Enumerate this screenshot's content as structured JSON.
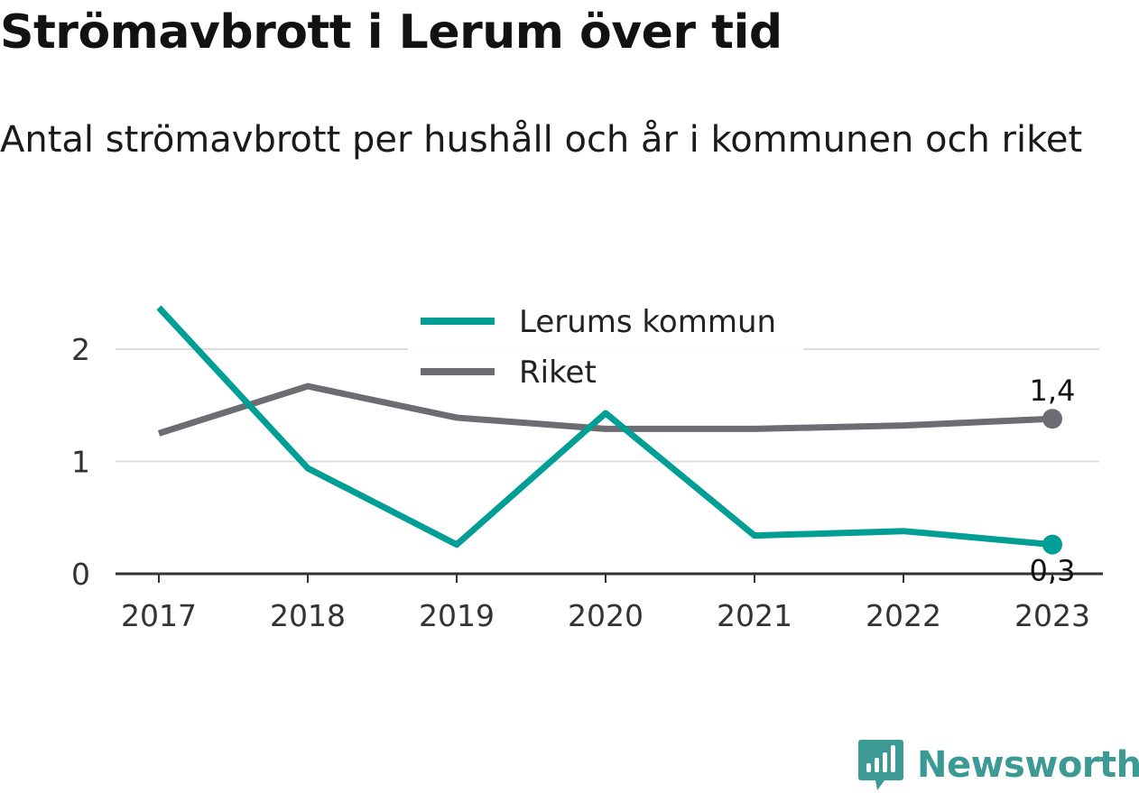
{
  "header": {
    "title": "Strömavbrott i Lerum över tid",
    "subtitle": "Antal strömavbrott per hushåll och år i kommunen och riket"
  },
  "chart_data": {
    "type": "line",
    "title": "Strömavbrott i Lerum över tid",
    "subtitle": "Antal strömavbrott per hushåll och år i kommunen och riket",
    "xlabel": "",
    "ylabel": "",
    "categories": [
      "2017",
      "2018",
      "2019",
      "2020",
      "2021",
      "2022",
      "2023"
    ],
    "yticks": [
      0,
      1,
      2
    ],
    "ytick_labels": [
      "0",
      "1",
      "2"
    ],
    "ylim": [
      0,
      2.4
    ],
    "grid": true,
    "legend_position": "top-center",
    "series": [
      {
        "name": "Lerums kommun",
        "color": "#009e94",
        "values": [
          2.37,
          0.94,
          0.26,
          1.43,
          0.34,
          0.38,
          0.26
        ],
        "end_label": "0,3"
      },
      {
        "name": "Riket",
        "color": "#6d6c72",
        "values": [
          1.25,
          1.67,
          1.39,
          1.29,
          1.29,
          1.32,
          1.38
        ],
        "end_label": "1,4"
      }
    ]
  },
  "branding": {
    "name": "Newsworthy",
    "color": "#3b9a94",
    "icon": "newsworthy-logo-icon"
  }
}
